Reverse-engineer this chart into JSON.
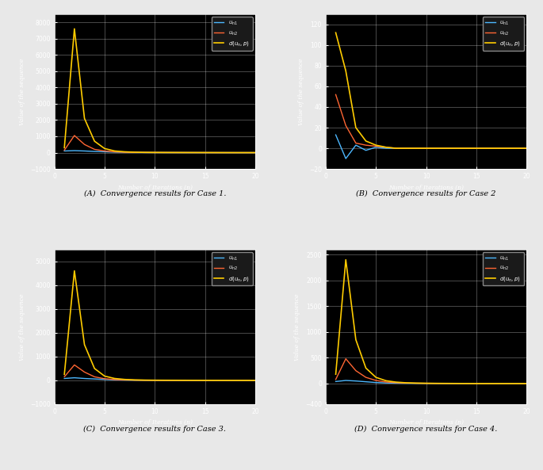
{
  "cases": [
    {
      "title": "(A)  Convergence results for Case 1.",
      "ylim": [
        -1000,
        8500
      ],
      "yticks": [
        -1000,
        0,
        1000,
        2000,
        3000,
        4000,
        5000,
        6000,
        7000,
        8000
      ],
      "u1": [
        100,
        120,
        100,
        70,
        50,
        30,
        20,
        15,
        10,
        8,
        6,
        5,
        4,
        3,
        2,
        1,
        1,
        0,
        0,
        0
      ],
      "u2": [
        150,
        1050,
        500,
        200,
        100,
        50,
        25,
        15,
        10,
        8,
        6,
        5,
        4,
        3,
        2,
        1,
        0,
        0,
        0,
        0
      ],
      "d": [
        300,
        7600,
        2100,
        700,
        250,
        100,
        50,
        25,
        15,
        10,
        8,
        6,
        5,
        4,
        3,
        2,
        1,
        0,
        0,
        0
      ]
    },
    {
      "title": "(B)  Convergence results for Case 2",
      "ylim": [
        -20,
        130
      ],
      "yticks": [
        -20,
        0,
        20,
        40,
        60,
        80,
        100,
        120
      ],
      "u1": [
        13,
        -10,
        3,
        -2,
        1,
        0,
        0,
        0,
        0,
        0,
        0,
        0,
        0,
        0,
        0,
        0,
        0,
        0,
        0,
        0
      ],
      "u2": [
        52,
        22,
        5,
        3,
        2,
        1,
        0,
        0,
        0,
        0,
        0,
        0,
        0,
        0,
        0,
        0,
        0,
        0,
        0,
        0
      ],
      "d": [
        112,
        75,
        20,
        7,
        3,
        1,
        0,
        0,
        0,
        0,
        0,
        0,
        0,
        0,
        0,
        0,
        0,
        0,
        0,
        0
      ]
    },
    {
      "title": "(C)  Convergence results for Case 3.",
      "ylim": [
        -1000,
        5500
      ],
      "yticks": [
        -1000,
        0,
        1000,
        2000,
        3000,
        4000,
        5000
      ],
      "u1": [
        80,
        110,
        80,
        60,
        40,
        25,
        15,
        10,
        8,
        6,
        5,
        4,
        3,
        2,
        1,
        0,
        0,
        0,
        0,
        0
      ],
      "u2": [
        150,
        650,
        350,
        150,
        70,
        35,
        20,
        12,
        8,
        6,
        5,
        4,
        3,
        2,
        1,
        0,
        0,
        0,
        0,
        0
      ],
      "d": [
        250,
        4600,
        1500,
        500,
        180,
        80,
        40,
        20,
        12,
        8,
        6,
        5,
        4,
        3,
        2,
        1,
        0,
        0,
        0,
        0
      ]
    },
    {
      "title": "(D)  Convergence results for Case 4.",
      "ylim": [
        -400,
        2600
      ],
      "yticks": [
        -400,
        0,
        500,
        1000,
        1500,
        2000,
        2500
      ],
      "u1": [
        40,
        60,
        50,
        35,
        20,
        12,
        8,
        6,
        5,
        4,
        3,
        2,
        1,
        0,
        0,
        0,
        0,
        0,
        0,
        0
      ],
      "u2": [
        80,
        480,
        250,
        120,
        60,
        30,
        18,
        10,
        7,
        5,
        4,
        3,
        2,
        1,
        0,
        0,
        0,
        0,
        0,
        0
      ],
      "d": [
        180,
        2400,
        850,
        300,
        120,
        55,
        28,
        15,
        9,
        6,
        4,
        3,
        2,
        1,
        0,
        0,
        0,
        0,
        0,
        0
      ]
    }
  ],
  "color_u1": "#4db8ff",
  "color_u2": "#ff6633",
  "color_d": "#ffcc00",
  "bg_color": "#000000",
  "fig_color": "#e8e8e8",
  "grid_color": "#ffffff",
  "tick_color": "#ffffff",
  "label_color": "#ffffff",
  "legend_bg": "#1a1a1a",
  "legend_edge": "#888888",
  "xlabel": "Number of Iterations (n)",
  "ylabel": "Value of the sequence",
  "legend_labels": [
    "$u_{n1}$",
    "$u_{n2}$",
    "$d(u_n, p)$"
  ],
  "xlim": [
    0,
    20
  ],
  "xticks": [
    0,
    5,
    10,
    15,
    20
  ]
}
